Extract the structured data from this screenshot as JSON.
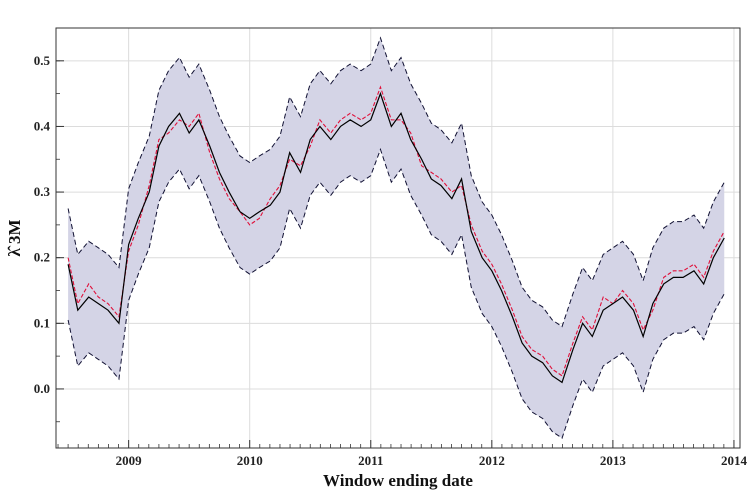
{
  "chart_data": {
    "type": "line",
    "title": "",
    "xlabel": "Window ending date",
    "ylabel": "λ̂ 3M",
    "xlim": [
      2008.4,
      2014.05
    ],
    "ylim": [
      -0.09,
      0.55
    ],
    "x_ticks": [
      "2009",
      "2010",
      "2011",
      "2012",
      "2013",
      "2014"
    ],
    "y_ticks": [
      "0.0",
      "0.1",
      "0.2",
      "0.3",
      "0.4",
      "0.5"
    ],
    "grid": true,
    "band_halfwidth": 0.085,
    "colors": {
      "estimate": "#000000",
      "alternative": "#e0103a",
      "band_fill": "#d4d4e6",
      "band_edge": "#111133",
      "grid": "#dcdcdc"
    },
    "series": [
      {
        "name": "estimate",
        "style": "solid black",
        "x": [
          2008.5,
          2008.58,
          2008.67,
          2008.75,
          2008.83,
          2008.92,
          2009.0,
          2009.08,
          2009.17,
          2009.25,
          2009.33,
          2009.42,
          2009.5,
          2009.58,
          2009.67,
          2009.75,
          2009.83,
          2009.92,
          2010.0,
          2010.08,
          2010.17,
          2010.25,
          2010.33,
          2010.42,
          2010.5,
          2010.58,
          2010.67,
          2010.75,
          2010.83,
          2010.92,
          2011.0,
          2011.08,
          2011.17,
          2011.25,
          2011.33,
          2011.42,
          2011.5,
          2011.58,
          2011.67,
          2011.75,
          2011.83,
          2011.92,
          2012.0,
          2012.08,
          2012.17,
          2012.25,
          2012.33,
          2012.42,
          2012.5,
          2012.58,
          2012.67,
          2012.75,
          2012.83,
          2012.92,
          2013.0,
          2013.08,
          2013.17,
          2013.25,
          2013.33,
          2013.42,
          2013.5,
          2013.58,
          2013.67,
          2013.75,
          2013.83,
          2013.92
        ],
        "values": [
          0.19,
          0.12,
          0.14,
          0.13,
          0.12,
          0.1,
          0.22,
          0.26,
          0.3,
          0.37,
          0.4,
          0.42,
          0.39,
          0.41,
          0.37,
          0.33,
          0.3,
          0.27,
          0.26,
          0.27,
          0.28,
          0.3,
          0.36,
          0.33,
          0.38,
          0.4,
          0.38,
          0.4,
          0.41,
          0.4,
          0.41,
          0.45,
          0.4,
          0.42,
          0.38,
          0.35,
          0.32,
          0.31,
          0.29,
          0.32,
          0.24,
          0.2,
          0.18,
          0.15,
          0.11,
          0.07,
          0.05,
          0.04,
          0.02,
          0.01,
          0.06,
          0.1,
          0.08,
          0.12,
          0.13,
          0.14,
          0.12,
          0.08,
          0.13,
          0.16,
          0.17,
          0.17,
          0.18,
          0.16,
          0.2,
          0.23
        ]
      },
      {
        "name": "alternative",
        "style": "dashed red",
        "x": [
          2008.5,
          2008.58,
          2008.67,
          2008.75,
          2008.83,
          2008.92,
          2009.0,
          2009.08,
          2009.17,
          2009.25,
          2009.33,
          2009.42,
          2009.5,
          2009.58,
          2009.67,
          2009.75,
          2009.83,
          2009.92,
          2010.0,
          2010.08,
          2010.17,
          2010.25,
          2010.33,
          2010.42,
          2010.5,
          2010.58,
          2010.67,
          2010.75,
          2010.83,
          2010.92,
          2011.0,
          2011.08,
          2011.17,
          2011.25,
          2011.33,
          2011.42,
          2011.5,
          2011.58,
          2011.67,
          2011.75,
          2011.83,
          2011.92,
          2012.0,
          2012.08,
          2012.17,
          2012.25,
          2012.33,
          2012.42,
          2012.5,
          2012.58,
          2012.67,
          2012.75,
          2012.83,
          2012.92,
          2013.0,
          2013.08,
          2013.17,
          2013.25,
          2013.33,
          2013.42,
          2013.5,
          2013.58,
          2013.67,
          2013.75,
          2013.83,
          2013.92
        ],
        "values": [
          0.2,
          0.13,
          0.16,
          0.14,
          0.13,
          0.11,
          0.21,
          0.25,
          0.31,
          0.38,
          0.39,
          0.41,
          0.4,
          0.42,
          0.36,
          0.32,
          0.29,
          0.27,
          0.25,
          0.26,
          0.29,
          0.31,
          0.35,
          0.34,
          0.37,
          0.41,
          0.39,
          0.41,
          0.42,
          0.41,
          0.42,
          0.46,
          0.41,
          0.41,
          0.39,
          0.34,
          0.33,
          0.32,
          0.3,
          0.31,
          0.25,
          0.21,
          0.19,
          0.16,
          0.12,
          0.08,
          0.06,
          0.05,
          0.03,
          0.02,
          0.07,
          0.11,
          0.09,
          0.14,
          0.13,
          0.15,
          0.13,
          0.09,
          0.12,
          0.17,
          0.18,
          0.18,
          0.19,
          0.17,
          0.21,
          0.24
        ]
      }
    ]
  }
}
